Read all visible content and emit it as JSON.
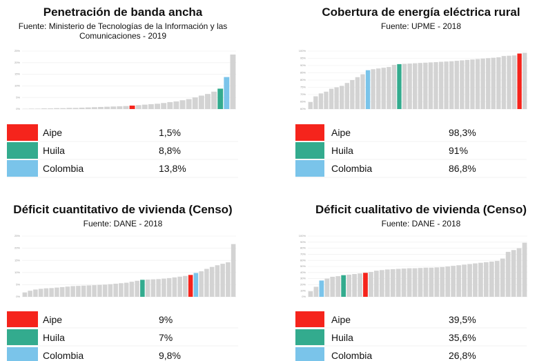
{
  "chart_data": [
    {
      "type": "bar",
      "title": "Penetración de banda ancha",
      "subtitle": "Fuente: Ministerio de Tecnologías de la Información y las Comunicaciones - 2019",
      "categories": [
        null,
        null,
        null,
        null,
        null,
        null,
        null,
        null,
        null,
        null,
        null,
        null,
        null,
        null,
        null,
        null,
        null,
        null,
        null,
        null,
        null,
        null,
        null,
        null,
        null,
        null,
        null,
        null,
        null,
        null,
        null,
        null,
        null,
        null
      ],
      "values": [
        0.1,
        0.2,
        0.2,
        0.3,
        0.3,
        0.4,
        0.4,
        0.5,
        0.5,
        0.6,
        0.7,
        0.8,
        0.9,
        1.0,
        1.1,
        1.2,
        1.3,
        1.5,
        1.7,
        1.9,
        2.1,
        2.3,
        2.6,
        3.0,
        3.3,
        3.8,
        4.3,
        5.0,
        5.8,
        6.5,
        7.5,
        8.8,
        13.8,
        23.5
      ],
      "colors": [
        "#d3d3d3",
        "#d3d3d3",
        "#d3d3d3",
        "#d3d3d3",
        "#d3d3d3",
        "#d3d3d3",
        "#d3d3d3",
        "#d3d3d3",
        "#d3d3d3",
        "#d3d3d3",
        "#d3d3d3",
        "#d3d3d3",
        "#d3d3d3",
        "#d3d3d3",
        "#d3d3d3",
        "#d3d3d3",
        "#d3d3d3",
        "#f5241c",
        "#d3d3d3",
        "#d3d3d3",
        "#d3d3d3",
        "#d3d3d3",
        "#d3d3d3",
        "#d3d3d3",
        "#d3d3d3",
        "#d3d3d3",
        "#d3d3d3",
        "#d3d3d3",
        "#d3d3d3",
        "#d3d3d3",
        "#d3d3d3",
        "#33ab8e",
        "#7ac4ea",
        "#d3d3d3"
      ],
      "ylim": [
        0,
        25
      ],
      "yticks": [
        {
          "value": 0,
          "label": "0%"
        },
        {
          "value": 5,
          "label": "5%"
        },
        {
          "value": 10,
          "label": "10%"
        },
        {
          "value": 15,
          "label": "15%"
        },
        {
          "value": 20,
          "label": "20%"
        },
        {
          "value": 25,
          "label": "25%"
        }
      ],
      "grid": true,
      "legend": [
        {
          "name": "Aipe",
          "color": "#f5241c",
          "label": "1,5%"
        },
        {
          "name": "Huila",
          "color": "#33ab8e",
          "label": "8,8%"
        },
        {
          "name": "Colombia",
          "color": "#7ac4ea",
          "label": "13,8%"
        }
      ]
    },
    {
      "type": "bar",
      "title": "Cobertura de energía eléctrica rural",
      "subtitle": "Fuente: UPME - 2018",
      "categories": [
        null,
        null,
        null,
        null,
        null,
        null,
        null,
        null,
        null,
        null,
        null,
        null,
        null,
        null,
        null,
        null,
        null,
        null,
        null,
        null,
        null,
        null,
        null,
        null,
        null,
        null,
        null,
        null,
        null,
        null,
        null,
        null,
        null,
        null,
        null,
        null,
        null,
        null,
        null,
        null,
        null,
        null
      ],
      "values": [
        64.8,
        68.8,
        70.8,
        72,
        74,
        75,
        76,
        78,
        80,
        82,
        84,
        86.8,
        87.5,
        88,
        88.5,
        89,
        90.5,
        91,
        91.2,
        91.4,
        91.6,
        91.8,
        92,
        92.2,
        92.4,
        92.6,
        92.8,
        93,
        93.3,
        93.6,
        93.9,
        94.2,
        94.5,
        94.8,
        95.1,
        95.4,
        95.7,
        96.6,
        96.8,
        97,
        98.3,
        98.8
      ],
      "colors": [
        "#d3d3d3",
        "#d3d3d3",
        "#d3d3d3",
        "#d3d3d3",
        "#d3d3d3",
        "#d3d3d3",
        "#d3d3d3",
        "#d3d3d3",
        "#d3d3d3",
        "#d3d3d3",
        "#d3d3d3",
        "#7ac4ea",
        "#d3d3d3",
        "#d3d3d3",
        "#d3d3d3",
        "#d3d3d3",
        "#d3d3d3",
        "#33ab8e",
        "#d3d3d3",
        "#d3d3d3",
        "#d3d3d3",
        "#d3d3d3",
        "#d3d3d3",
        "#d3d3d3",
        "#d3d3d3",
        "#d3d3d3",
        "#d3d3d3",
        "#d3d3d3",
        "#d3d3d3",
        "#d3d3d3",
        "#d3d3d3",
        "#d3d3d3",
        "#d3d3d3",
        "#d3d3d3",
        "#d3d3d3",
        "#d3d3d3",
        "#d3d3d3",
        "#d3d3d3",
        "#d3d3d3",
        "#d3d3d3",
        "#f5241c",
        "#d3d3d3"
      ],
      "ylim": [
        60,
        100
      ],
      "yticks": [
        {
          "value": 60,
          "label": "60%"
        },
        {
          "value": 65,
          "label": "65%"
        },
        {
          "value": 70,
          "label": "70%"
        },
        {
          "value": 75,
          "label": "75%"
        },
        {
          "value": 80,
          "label": "80%"
        },
        {
          "value": 85,
          "label": "85%"
        },
        {
          "value": 90,
          "label": "90%"
        },
        {
          "value": 95,
          "label": "95%"
        },
        {
          "value": 100,
          "label": "100%"
        }
      ],
      "grid": true,
      "legend": [
        {
          "name": "Aipe",
          "color": "#f5241c",
          "label": "98,3%"
        },
        {
          "name": "Huila",
          "color": "#33ab8e",
          "label": "91%"
        },
        {
          "name": "Colombia",
          "color": "#7ac4ea",
          "label": "86,8%"
        }
      ]
    },
    {
      "type": "bar",
      "title": "Déficit cuantitativo de vivienda (Censo)",
      "subtitle": "Fuente: DANE - 2018",
      "categories": [
        null,
        null,
        null,
        null,
        null,
        null,
        null,
        null,
        null,
        null,
        null,
        null,
        null,
        null,
        null,
        null,
        null,
        null,
        null,
        null,
        null,
        null,
        null,
        null,
        null,
        null,
        null,
        null,
        null,
        null,
        null,
        null,
        null,
        null,
        null,
        null,
        null,
        null,
        null,
        null
      ],
      "values": [
        1.8,
        2.5,
        3.0,
        3.3,
        3.5,
        3.6,
        3.8,
        4.0,
        4.2,
        4.4,
        4.5,
        4.6,
        4.7,
        4.8,
        4.9,
        5.0,
        5.2,
        5.4,
        5.6,
        5.8,
        6.2,
        6.6,
        7,
        7.1,
        7.2,
        7.3,
        7.5,
        7.7,
        8.0,
        8.3,
        8.6,
        9,
        9.8,
        10.5,
        11.5,
        12.3,
        13.0,
        13.6,
        14.2,
        21.7
      ],
      "colors": [
        "#d3d3d3",
        "#d3d3d3",
        "#d3d3d3",
        "#d3d3d3",
        "#d3d3d3",
        "#d3d3d3",
        "#d3d3d3",
        "#d3d3d3",
        "#d3d3d3",
        "#d3d3d3",
        "#d3d3d3",
        "#d3d3d3",
        "#d3d3d3",
        "#d3d3d3",
        "#d3d3d3",
        "#d3d3d3",
        "#d3d3d3",
        "#d3d3d3",
        "#d3d3d3",
        "#d3d3d3",
        "#d3d3d3",
        "#d3d3d3",
        "#33ab8e",
        "#d3d3d3",
        "#d3d3d3",
        "#d3d3d3",
        "#d3d3d3",
        "#d3d3d3",
        "#d3d3d3",
        "#d3d3d3",
        "#d3d3d3",
        "#f5241c",
        "#7ac4ea",
        "#d3d3d3",
        "#d3d3d3",
        "#d3d3d3",
        "#d3d3d3",
        "#d3d3d3",
        "#d3d3d3",
        "#d3d3d3"
      ],
      "ylim": [
        0,
        25
      ],
      "yticks": [
        {
          "value": 0,
          "label": "0%"
        },
        {
          "value": 5,
          "label": "5%"
        },
        {
          "value": 10,
          "label": "10%"
        },
        {
          "value": 15,
          "label": "15%"
        },
        {
          "value": 20,
          "label": "20%"
        },
        {
          "value": 25,
          "label": "25%"
        }
      ],
      "grid": true,
      "legend": [
        {
          "name": "Aipe",
          "color": "#f5241c",
          "label": "9%"
        },
        {
          "name": "Huila",
          "color": "#33ab8e",
          "label": "7%"
        },
        {
          "name": "Colombia",
          "color": "#7ac4ea",
          "label": "9,8%"
        }
      ]
    },
    {
      "type": "bar",
      "title": "Déficit cualitativo de vivienda (Censo)",
      "subtitle": "Fuente: DANE - 2018",
      "categories": [
        null,
        null,
        null,
        null,
        null,
        null,
        null,
        null,
        null,
        null,
        null,
        null,
        null,
        null,
        null,
        null,
        null,
        null,
        null,
        null,
        null,
        null,
        null,
        null,
        null,
        null,
        null,
        null,
        null,
        null,
        null,
        null,
        null,
        null,
        null,
        null,
        null,
        null,
        null,
        null
      ],
      "values": [
        9,
        16.5,
        26.8,
        30,
        33,
        34,
        35.6,
        36.5,
        37.5,
        38.5,
        39.5,
        41,
        43,
        44,
        45,
        45.5,
        46,
        46.5,
        47,
        47,
        47.5,
        48,
        48,
        48.5,
        49,
        50,
        51,
        52,
        53,
        54,
        55,
        56,
        57,
        58,
        59,
        63,
        74,
        77,
        80,
        89
      ],
      "colors": [
        "#d3d3d3",
        "#d3d3d3",
        "#7ac4ea",
        "#d3d3d3",
        "#d3d3d3",
        "#d3d3d3",
        "#33ab8e",
        "#d3d3d3",
        "#d3d3d3",
        "#d3d3d3",
        "#f5241c",
        "#d3d3d3",
        "#d3d3d3",
        "#d3d3d3",
        "#d3d3d3",
        "#d3d3d3",
        "#d3d3d3",
        "#d3d3d3",
        "#d3d3d3",
        "#d3d3d3",
        "#d3d3d3",
        "#d3d3d3",
        "#d3d3d3",
        "#d3d3d3",
        "#d3d3d3",
        "#d3d3d3",
        "#d3d3d3",
        "#d3d3d3",
        "#d3d3d3",
        "#d3d3d3",
        "#d3d3d3",
        "#d3d3d3",
        "#d3d3d3",
        "#d3d3d3",
        "#d3d3d3",
        "#d3d3d3",
        "#d3d3d3",
        "#d3d3d3",
        "#d3d3d3",
        "#d3d3d3"
      ],
      "ylim": [
        0,
        100
      ],
      "yticks": [
        {
          "value": 0,
          "label": "0%"
        },
        {
          "value": 10,
          "label": "10%"
        },
        {
          "value": 20,
          "label": "20%"
        },
        {
          "value": 30,
          "label": "30%"
        },
        {
          "value": 40,
          "label": "40%"
        },
        {
          "value": 50,
          "label": "50%"
        },
        {
          "value": 60,
          "label": "60%"
        },
        {
          "value": 70,
          "label": "70%"
        },
        {
          "value": 80,
          "label": "80%"
        },
        {
          "value": 90,
          "label": "90%"
        },
        {
          "value": 100,
          "label": "100%"
        }
      ],
      "grid": true,
      "legend": [
        {
          "name": "Aipe",
          "color": "#f5241c",
          "label": "39,5%"
        },
        {
          "name": "Huila",
          "color": "#33ab8e",
          "label": "35,6%"
        },
        {
          "name": "Colombia",
          "color": "#7ac4ea",
          "label": "26,8%"
        }
      ]
    }
  ]
}
